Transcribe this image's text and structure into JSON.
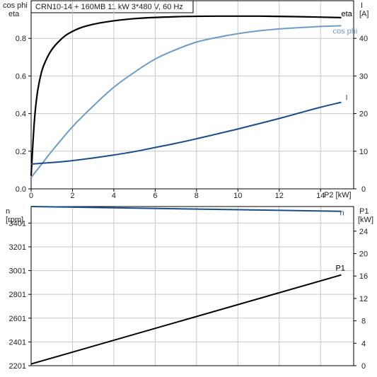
{
  "title": "CRN10-14 + 160MB   11 kW   3*480 V, 60 Hz",
  "chart_data": [
    {
      "type": "line",
      "name_hint": "top",
      "left_axis_label": [
        "cos phi",
        "eta"
      ],
      "right_axis_label": [
        "I",
        "[A]"
      ],
      "xlabel": "P2 [kW]",
      "xlim": [
        0,
        15.6
      ],
      "ylim_left": [
        0,
        1
      ],
      "ylim_right": [
        0,
        50
      ],
      "x_ticks": [
        0,
        2,
        4,
        6,
        8,
        10,
        12,
        14
      ],
      "y_ticks_left": [
        0.0,
        0.2,
        0.4,
        0.6,
        0.8
      ],
      "y_tick_labels_left": [
        "0.0",
        "0.2",
        "0.4",
        "0.6",
        "0.8"
      ],
      "y_ticks_right": [
        0,
        10,
        20,
        30,
        40
      ],
      "grid": true,
      "series": [
        {
          "name": "eta",
          "axis": "left",
          "color": "#000000",
          "x": [
            0,
            0.15,
            0.3,
            0.5,
            0.7,
            1.0,
            1.4,
            1.8,
            2.5,
            3.5,
            5,
            7,
            9,
            11,
            13,
            15
          ],
          "y": [
            0.07,
            0.35,
            0.51,
            0.62,
            0.68,
            0.74,
            0.79,
            0.825,
            0.86,
            0.885,
            0.905,
            0.915,
            0.918,
            0.918,
            0.915,
            0.91
          ]
        },
        {
          "name": "cos phi",
          "axis": "left",
          "color": "#6e9cc4",
          "x": [
            0,
            0.5,
            1,
            2,
            3,
            4,
            5,
            6,
            7,
            8,
            9,
            10,
            11,
            12,
            13,
            14,
            15
          ],
          "y": [
            0.06,
            0.13,
            0.2,
            0.33,
            0.44,
            0.54,
            0.62,
            0.69,
            0.74,
            0.78,
            0.805,
            0.825,
            0.84,
            0.85,
            0.857,
            0.863,
            0.867
          ]
        },
        {
          "name": "I",
          "axis": "right",
          "color": "#1a4d86",
          "x": [
            0,
            1,
            2,
            3,
            4,
            5,
            6,
            7,
            8,
            9,
            10,
            11,
            12,
            13,
            14,
            15
          ],
          "y": [
            6.6,
            7.0,
            7.5,
            8.2,
            9.0,
            9.9,
            11.0,
            12.1,
            13.3,
            14.6,
            15.9,
            17.3,
            18.7,
            20.2,
            21.7,
            23.0
          ]
        }
      ]
    },
    {
      "type": "line",
      "name_hint": "bottom",
      "left_axis_label": [
        "n",
        "[rpm]"
      ],
      "right_axis_label": [
        "P1",
        "[kW]"
      ],
      "xlim": [
        0,
        15.6
      ],
      "ylim_left": [
        2201,
        3540
      ],
      "ylim_right": [
        0,
        28.4
      ],
      "y_ticks_left": [
        2201,
        2401,
        2601,
        2801,
        3001,
        3201,
        3401
      ],
      "y_ticks_right": [
        0,
        4,
        8,
        12,
        16,
        20,
        24
      ],
      "grid": true,
      "series": [
        {
          "name": "n",
          "axis": "left",
          "color": "#1a4d86",
          "x": [
            0,
            15
          ],
          "y": [
            3540,
            3500
          ]
        },
        {
          "name": "P1",
          "axis": "right",
          "color": "#000000",
          "x": [
            0,
            15
          ],
          "y": [
            0.3,
            16.2
          ]
        }
      ]
    }
  ]
}
